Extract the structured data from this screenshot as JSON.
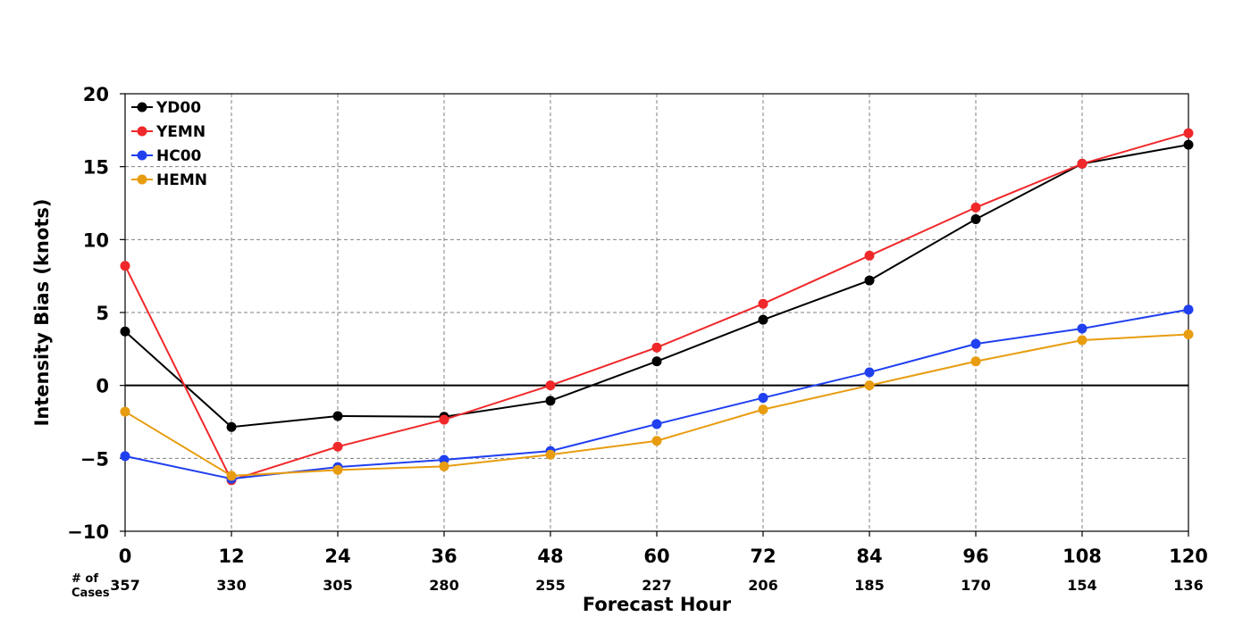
{
  "chart_data": {
    "type": "line",
    "title": "",
    "xlabel": "Forecast Hour",
    "ylabel": "Intensity Bias (knots)",
    "x": [
      0,
      12,
      24,
      36,
      48,
      60,
      72,
      84,
      96,
      108,
      120
    ],
    "x_tick_labels": [
      "0",
      "12",
      "24",
      "36",
      "48",
      "60",
      "72",
      "84",
      "96",
      "108",
      "120"
    ],
    "xlim": [
      0,
      120
    ],
    "ylim": [
      -10,
      20
    ],
    "y_ticks": [
      -10,
      -5,
      0,
      5,
      10,
      15,
      20
    ],
    "y_tick_labels": [
      "−10",
      "−5",
      "0",
      "5",
      "10",
      "15",
      "20"
    ],
    "grid": true,
    "zero_line": true,
    "legend_position": "top-left",
    "cases_label_line1": "# of",
    "cases_label_line2": "Cases",
    "cases": [
      "357",
      "330",
      "305",
      "280",
      "255",
      "227",
      "206",
      "185",
      "170",
      "154",
      "136"
    ],
    "series": [
      {
        "name": "YD00",
        "color": "#000000",
        "values": [
          3.7,
          -2.85,
          -2.1,
          -2.15,
          -1.05,
          1.65,
          4.5,
          7.2,
          11.4,
          15.2,
          16.5
        ]
      },
      {
        "name": "YEMN",
        "color": "#f0282a",
        "values": [
          8.2,
          -6.5,
          -4.2,
          -2.35,
          0.0,
          2.6,
          5.6,
          8.9,
          12.2,
          15.2,
          17.3
        ]
      },
      {
        "name": "HC00",
        "color": "#2040f0",
        "values": [
          -4.85,
          -6.4,
          -5.6,
          -5.1,
          -4.5,
          -2.65,
          -0.85,
          0.9,
          2.85,
          3.9,
          5.2
        ]
      },
      {
        "name": "HEMN",
        "color": "#e89c10",
        "values": [
          -1.8,
          -6.2,
          -5.8,
          -5.55,
          -4.75,
          -3.8,
          -1.65,
          0.0,
          1.65,
          3.1,
          3.5
        ]
      }
    ]
  }
}
